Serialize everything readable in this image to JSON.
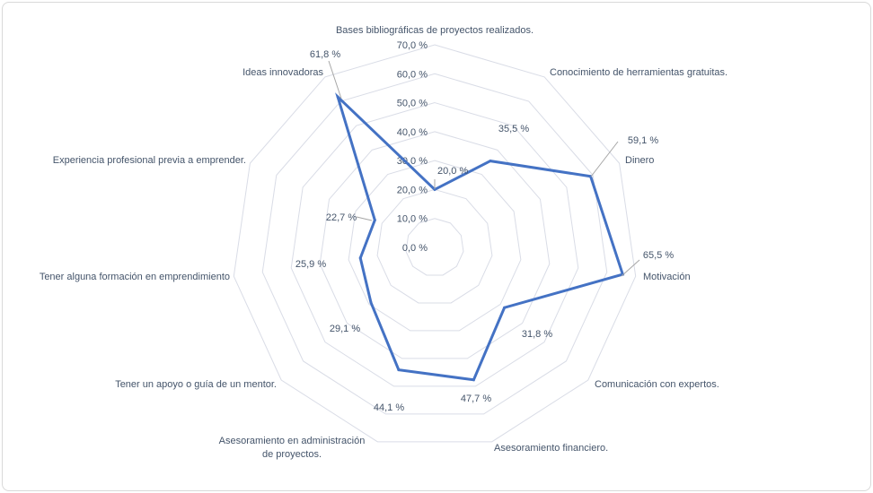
{
  "chart_data": {
    "type": "radar",
    "categories": [
      "Bases bibliográficas de proyectos realizados.",
      "Conocimiento de herramientas gratuitas.",
      "Dinero",
      "Motivación",
      "Comunicación con expertos.",
      "Asesoramiento financiero.",
      "Asesoramiento en administración de proyectos.",
      "Tener un apoyo o guía de un mentor.",
      "Tener alguna formación en emprendimiento",
      "Experiencia profesional previa a emprender.",
      "Ideas innovadoras"
    ],
    "values": [
      20.0,
      35.5,
      59.1,
      65.5,
      31.8,
      47.7,
      44.1,
      29.1,
      25.9,
      22.7,
      61.8
    ],
    "data_labels": [
      "20,0 %",
      "35,5 %",
      "59,1 %",
      "65,5 %",
      "31,8 %",
      "47,7 %",
      "44,1 %",
      "29,1 %",
      "25,9 %",
      "22,7 %",
      "61,8 %"
    ],
    "tick_labels": [
      "0,0 %",
      "10,0 %",
      "20,0 %",
      "30,0 %",
      "40,0 %",
      "50,0 %",
      "60,0 %",
      "70,0 %"
    ],
    "range": [
      0,
      70
    ],
    "grid": true,
    "legend": "none",
    "series_color": "#4472c4",
    "grid_color": "#d9dce6"
  }
}
